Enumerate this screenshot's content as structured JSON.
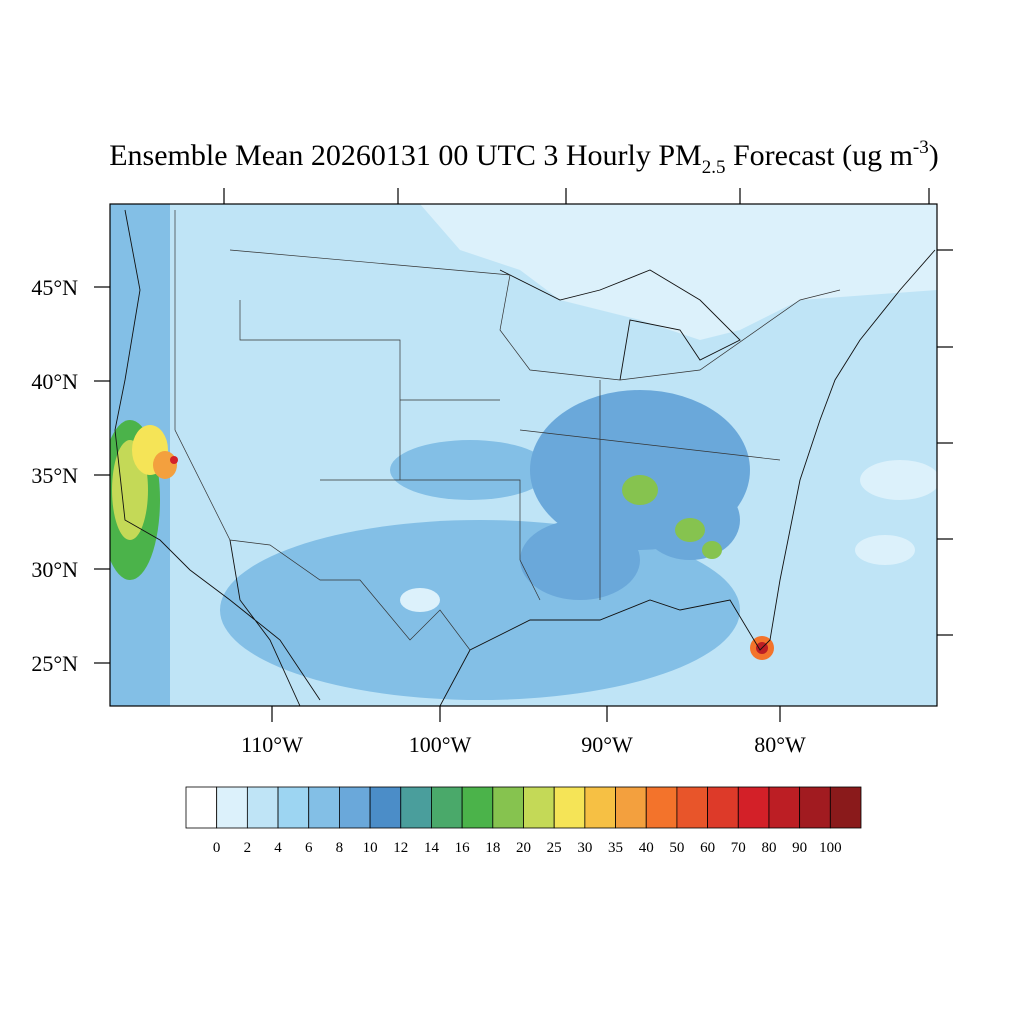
{
  "title": {
    "main": "Ensemble Mean 20260131 00 UTC 3 Hourly PM",
    "subscript": "2.5",
    "middle": " Forecast (ug m",
    "superscript": "-3",
    "end": ")"
  },
  "lat_labels": [
    "45°N",
    "40°N",
    "35°N",
    "30°N",
    "25°N"
  ],
  "lon_labels": [
    "110°W",
    "100°W",
    "90°W",
    "80°W"
  ],
  "colorbar": {
    "labels": [
      0,
      2,
      4,
      6,
      8,
      10,
      12,
      14,
      16,
      18,
      20,
      25,
      30,
      35,
      40,
      50,
      60,
      70,
      80,
      90,
      100
    ],
    "colors": [
      "#ffffff",
      "#dcf1fb",
      "#bfe4f6",
      "#9dd5f2",
      "#83bfe6",
      "#6aa8da",
      "#4b8dc8",
      "#4a9e9c",
      "#4aa96a",
      "#4bb34a",
      "#86c34f",
      "#c4d957",
      "#f5e457",
      "#f6c044",
      "#f3a03e",
      "#f3732b",
      "#e8552a",
      "#dd3a29",
      "#d32028",
      "#bc1e24",
      "#a11b20",
      "#8a1a1b"
    ]
  }
}
